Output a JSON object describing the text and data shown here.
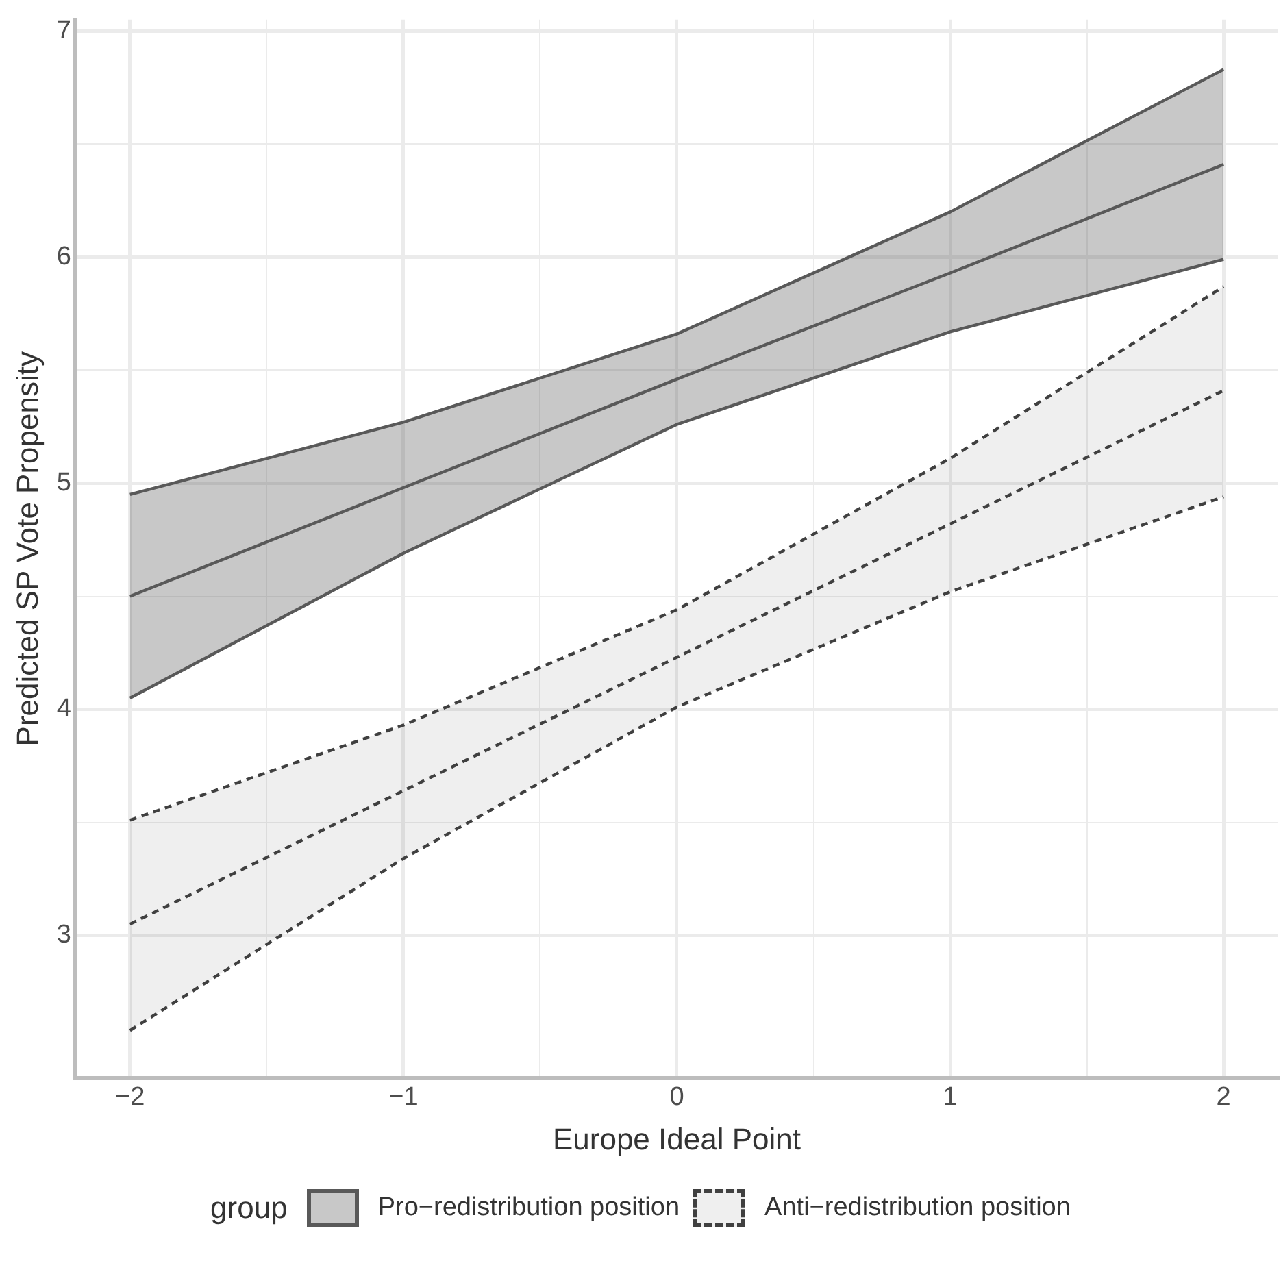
{
  "chart_data": {
    "type": "line",
    "xlabel": "Europe Ideal Point",
    "ylabel": "Predicted SP Vote Propensity",
    "legend_title": "group",
    "legend": "bottom",
    "grid": true,
    "marker": "none",
    "x": [
      -2,
      -1,
      0,
      1,
      2
    ],
    "xlim": [
      -2.2,
      2.2
    ],
    "xticks": [
      {
        "value": -2,
        "label": "−2"
      },
      {
        "value": -1.5,
        "label": null
      },
      {
        "value": -1,
        "label": "−1"
      },
      {
        "value": -0.5,
        "label": null
      },
      0,
      {
        "value": 0.5,
        "label": null
      },
      1,
      {
        "value": 1.5,
        "label": null
      },
      2
    ],
    "ylim": [
      2.37,
      7.05
    ],
    "yticks": [
      3,
      {
        "value": 3.5,
        "label": null
      },
      4,
      {
        "value": 4.5,
        "label": null
      },
      5,
      {
        "value": 5.5,
        "label": null
      },
      6,
      {
        "value": 6.5,
        "label": null
      },
      7
    ],
    "series": [
      {
        "name": "Pro−redistribution position",
        "color": "#595959",
        "line_style": "solid",
        "values": [
          4.5,
          4.98,
          5.46,
          5.93,
          6.41
        ],
        "lower": [
          4.05,
          4.69,
          5.26,
          5.67,
          5.99
        ],
        "upper": [
          4.95,
          5.27,
          5.66,
          6.2,
          6.83
        ]
      },
      {
        "name": "Anti−redistribution position",
        "color": "#404040",
        "line_style": "dashed",
        "values": [
          3.05,
          3.64,
          4.23,
          4.82,
          5.41
        ],
        "lower": [
          2.58,
          3.34,
          4.01,
          4.52,
          4.94
        ],
        "upper": [
          3.51,
          3.93,
          4.44,
          5.11,
          5.87
        ]
      },
      {
        "color": "#595959",
        "line_style": "solid",
        "values": [
          4.95,
          5.27,
          5.66,
          6.2,
          6.83
        ]
      },
      {
        "color": "#595959",
        "line_style": "solid",
        "values": [
          4.05,
          4.69,
          5.26,
          5.67,
          5.99
        ]
      },
      {
        "color": "#404040",
        "line_style": "dashed",
        "values": [
          3.51,
          3.93,
          4.44,
          5.11,
          5.87
        ]
      },
      {
        "color": "#404040",
        "line_style": "dashed",
        "values": [
          2.58,
          3.34,
          4.01,
          4.52,
          4.94
        ]
      }
    ]
  }
}
